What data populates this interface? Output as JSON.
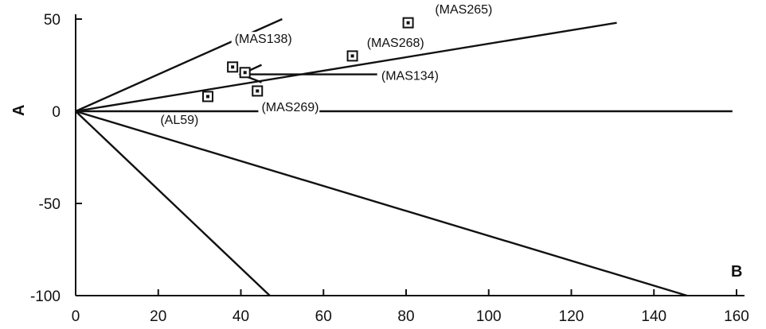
{
  "chart_data": {
    "type": "scatter",
    "title": "",
    "xlabel": "B",
    "ylabel": "A",
    "xlim": [
      0,
      160
    ],
    "ylim": [
      -100,
      50
    ],
    "xticks": [
      0,
      20,
      40,
      60,
      80,
      100,
      120,
      140,
      160
    ],
    "yticks": [
      50,
      0,
      -50,
      -100
    ],
    "grid": false,
    "series": [
      {
        "type": "scatter",
        "marker": "square",
        "points": [
          {
            "x": 80.5,
            "y": 48
          },
          {
            "x": 67,
            "y": 30
          },
          {
            "x": 38,
            "y": 24
          },
          {
            "x": 41,
            "y": 21
          },
          {
            "x": 44,
            "y": 11
          },
          {
            "x": 32,
            "y": 8
          }
        ]
      }
    ],
    "lines": [
      {
        "x": [
          0,
          50
        ],
        "y": [
          0,
          50
        ]
      },
      {
        "x": [
          0,
          131
        ],
        "y": [
          0,
          48
        ]
      },
      {
        "x": [
          0,
          159
        ],
        "y": [
          0,
          0
        ]
      },
      {
        "x": [
          0,
          148
        ],
        "y": [
          0,
          -100
        ]
      },
      {
        "x": [
          0,
          47
        ],
        "y": [
          0,
          -100
        ]
      }
    ],
    "annotations": [
      {
        "text": "(MAS265)",
        "x": 87,
        "y": 53
      },
      {
        "text": "(MAS138)",
        "x": 38.5,
        "y": 37
      },
      {
        "text": "(MAS268)",
        "x": 70.5,
        "y": 35
      },
      {
        "text": "(MAS134)",
        "x": 74,
        "y": 17
      },
      {
        "text": "(MAS269)",
        "x": 45,
        "y": 0
      },
      {
        "text": "(AL59)",
        "x": 20.5,
        "y": -7
      }
    ],
    "arrow": {
      "from": {
        "x": 73,
        "y": 20
      },
      "to": {
        "x": 40,
        "y": 20
      }
    }
  }
}
